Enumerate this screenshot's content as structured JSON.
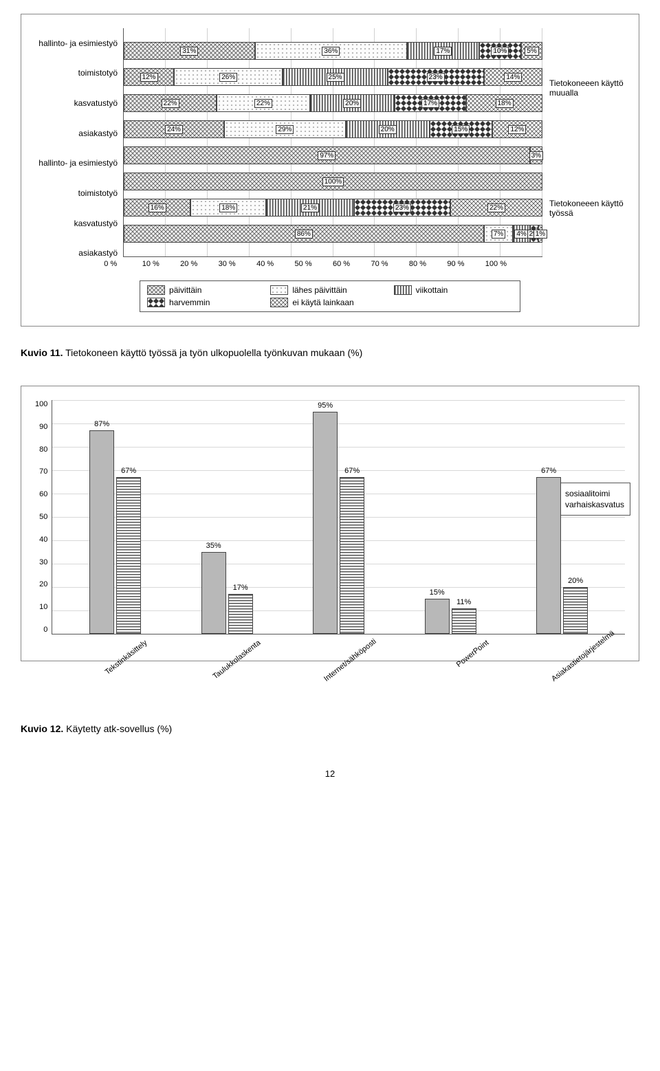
{
  "chart1": {
    "type": "stacked-bar-horizontal",
    "xlim": [
      0,
      100
    ],
    "xtick_step": 10,
    "xtick_suffix": " %",
    "category_labels": [
      "hallinto- ja esimiestyö",
      "toimistotyö",
      "kasvatustyö",
      "asiakastyö",
      "hallinto- ja esimiestyö",
      "toimistotyö",
      "kasvatustyö",
      "asiakastyö"
    ],
    "right_group_labels": [
      "Tietokoneeen käyttö muualla",
      "Tietokoneeen käyttö työssä"
    ],
    "series_names": [
      "päivittäin",
      "lähes päivittäin",
      "viikottain",
      "harvemmin",
      "ei käytä lainkaan"
    ],
    "pattern_classes": [
      "pat-paivittain",
      "pat-lahes",
      "pat-viikottain",
      "pat-harvemmin",
      "pat-eikayta"
    ],
    "rows": [
      {
        "values": [
          31,
          36,
          17,
          10,
          5
        ],
        "labels": [
          "31%",
          "36%",
          "17%",
          "10%",
          "5%"
        ]
      },
      {
        "values": [
          12,
          26,
          25,
          23,
          14
        ],
        "labels": [
          "12%",
          "26%",
          "25%",
          "23%",
          "14%"
        ]
      },
      {
        "values": [
          22,
          22,
          20,
          17,
          18
        ],
        "labels": [
          "22%",
          "22%",
          "20%",
          "17%",
          "18%"
        ]
      },
      {
        "values": [
          24,
          29,
          20,
          15,
          12
        ],
        "labels": [
          "24%",
          "29%",
          "20%",
          "15%",
          "12%"
        ]
      },
      {
        "values": [
          97,
          0,
          0,
          0,
          3
        ],
        "labels": [
          "97%",
          "",
          "",
          "",
          "3%"
        ]
      },
      {
        "values": [
          100,
          0,
          0,
          0,
          0
        ],
        "labels": [
          "100%",
          "",
          "",
          "",
          ""
        ]
      },
      {
        "values": [
          16,
          18,
          21,
          23,
          22
        ],
        "labels": [
          "16%",
          "18%",
          "21%",
          "23%",
          "22%"
        ]
      },
      {
        "values": [
          86,
          7,
          4,
          2,
          1
        ],
        "labels": [
          "86%",
          "7%",
          "4%",
          "2%",
          "1%"
        ]
      }
    ]
  },
  "caption1": {
    "bold": "Kuvio 11.",
    "rest": " Tietokoneen käyttö työssä ja työn ulkopuolella työnkuvan mukaan (%)"
  },
  "chart2": {
    "type": "bar-grouped",
    "ylim": [
      0,
      100
    ],
    "ytick_step": 10,
    "categories": [
      "Tekstinkäsittely",
      "Taulukkolaskenta",
      "Internet/sähköposti",
      "PowerPoint",
      "Asiakastietojärjestelmä"
    ],
    "series": [
      {
        "name": "sosiaalitoimi",
        "class": "bar-sosiaali",
        "values": [
          87,
          35,
          95,
          15,
          67
        ],
        "labels": [
          "87%",
          "35%",
          "95%",
          "15%",
          "67%"
        ]
      },
      {
        "name": "varhaiskasvatus",
        "class": "bar-varhais",
        "values": [
          67,
          17,
          67,
          11,
          20
        ],
        "labels": [
          "67%",
          "17%",
          "67%",
          "11%",
          "20%"
        ]
      }
    ]
  },
  "caption2": {
    "bold": "Kuvio 12.",
    "rest": " Käytetty atk-sovellus (%)"
  },
  "page_number": "12"
}
